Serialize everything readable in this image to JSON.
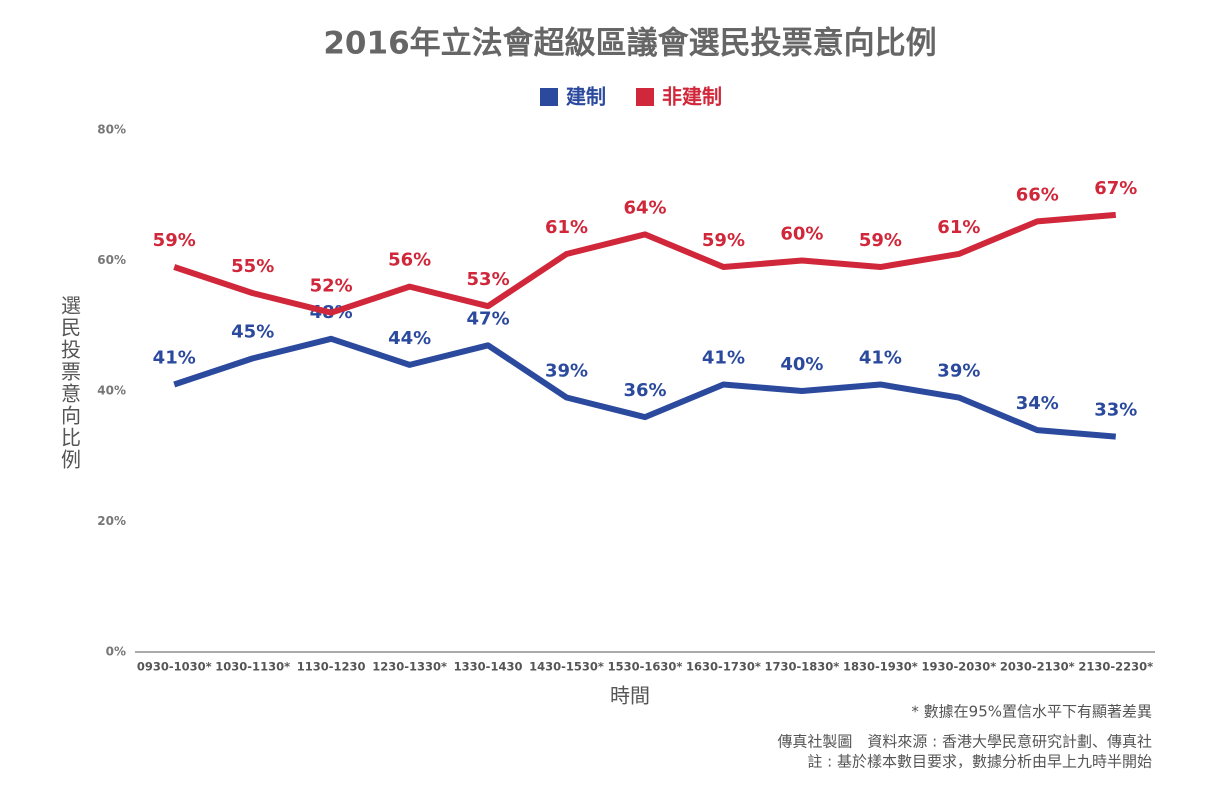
{
  "chart_data": {
    "type": "line",
    "title": "2016年立法會超級區議會選民投票意向比例",
    "y_label": "選民投票意向比例",
    "x_label": "時間",
    "categories": [
      "0930-1030*",
      "1030-1130*",
      "1130-1230",
      "1230-1330*",
      "1330-1430",
      "1430-1530*",
      "1530-1630*",
      "1630-1730*",
      "1730-1830*",
      "1830-1930*",
      "1930-2030*",
      "2030-2130*",
      "2130-2230*"
    ],
    "series": [
      {
        "name": "建制",
        "color": "#2b4a9e",
        "values": [
          41,
          45,
          48,
          44,
          47,
          39,
          36,
          41,
          40,
          41,
          39,
          34,
          33
        ],
        "value_labels": [
          "41%",
          "45%",
          "48%",
          "44%",
          "47%",
          "39%",
          "36%",
          "41%",
          "40%",
          "41%",
          "39%",
          "34%",
          "33%"
        ]
      },
      {
        "name": "非建制",
        "color": "#d0273a",
        "values": [
          59,
          55,
          52,
          56,
          53,
          61,
          64,
          59,
          60,
          59,
          61,
          66,
          67
        ],
        "value_labels": [
          "59%",
          "55%",
          "52%",
          "56%",
          "53%",
          "61%",
          "64%",
          "59%",
          "60%",
          "59%",
          "61%",
          "66%",
          "67%"
        ]
      }
    ],
    "ylim": [
      0,
      80
    ],
    "yticks": [
      {
        "value": 0,
        "label": "0%"
      },
      {
        "value": 20,
        "label": "20%"
      },
      {
        "value": 40,
        "label": "40%"
      },
      {
        "value": 60,
        "label": "60%"
      },
      {
        "value": 80,
        "label": "80%"
      }
    ],
    "grid": false,
    "notes": [
      "* 數據在95%置信水平下有顯著差異",
      "傳真社製圖　資料來源 : 香港大學民意研究計劃、傳真社",
      "註 : 基於樣本數目要求，數據分析由早上九時半開始"
    ]
  }
}
